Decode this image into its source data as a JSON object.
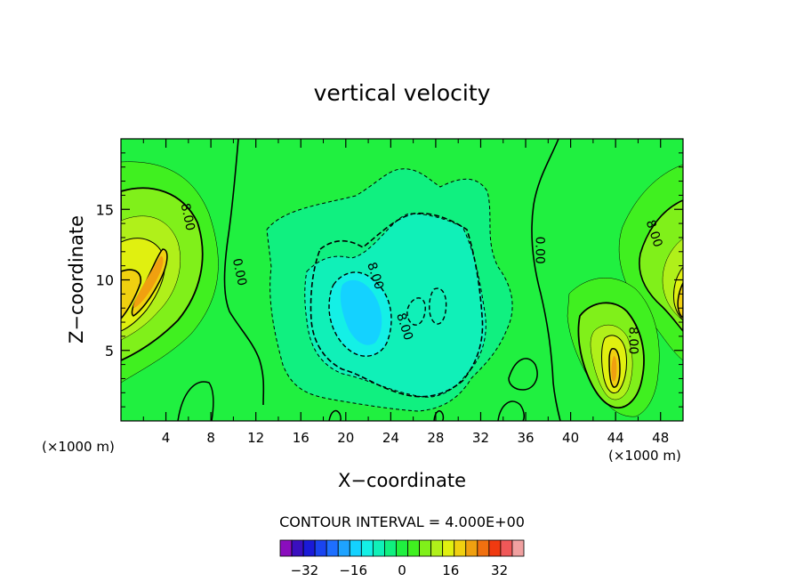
{
  "chart_data": {
    "type": "contour",
    "title": "vertical velocity",
    "xlabel": "X−coordinate",
    "ylabel": "Z−coordinate",
    "x_unit_left": "(×1000 m)",
    "x_unit_right": "(×1000 m)",
    "xlim": [
      0,
      50
    ],
    "ylim": [
      0,
      20
    ],
    "x_ticks": [
      4,
      8,
      12,
      16,
      20,
      24,
      28,
      32,
      36,
      40,
      44,
      48
    ],
    "y_ticks": [
      5,
      10,
      15
    ],
    "contour_interval_text": "CONTOUR INTERVAL = 4.000E+00",
    "contour_labels": [
      {
        "text": "8.00",
        "x": 5.6,
        "y": 14.4,
        "rot": 78
      },
      {
        "text": "0.00",
        "x": 10.2,
        "y": 10.5,
        "rot": 78
      },
      {
        "text": "8.00",
        "x": 22.3,
        "y": 10.2,
        "rot": 72
      },
      {
        "text": "8.00",
        "x": 24.9,
        "y": 6.6,
        "rot": 72
      },
      {
        "text": "0.00",
        "x": 36.9,
        "y": 12.1,
        "rot": 90
      },
      {
        "text": "8.00",
        "x": 47.1,
        "y": 13.2,
        "rot": 72
      },
      {
        "text": "8.00",
        "x": 45.2,
        "y": 5.7,
        "rot": 90
      }
    ],
    "colorbar": {
      "levels": [
        -40,
        -36,
        -32,
        -28,
        -24,
        -20,
        -16,
        -12,
        -8,
        -4,
        0,
        4,
        8,
        12,
        16,
        20,
        24,
        28,
        32,
        36,
        40
      ],
      "colors": [
        "#8a0dbd",
        "#3a0fbf",
        "#1a1ad8",
        "#1a44f0",
        "#1e6fff",
        "#1ea3ff",
        "#14d2ff",
        "#14f0e6",
        "#10f0b8",
        "#10f080",
        "#20f040",
        "#40f020",
        "#80f01a",
        "#b0f01a",
        "#e0f010",
        "#f0d010",
        "#f0a010",
        "#f07010",
        "#f03a10",
        "#f05858",
        "#f0a0a0"
      ],
      "tick_labels": [
        "−32",
        "−16",
        "0",
        "16",
        "32"
      ],
      "tick_values": [
        -32,
        -16,
        0,
        16,
        32
      ]
    },
    "background_color": "#20f040"
  }
}
